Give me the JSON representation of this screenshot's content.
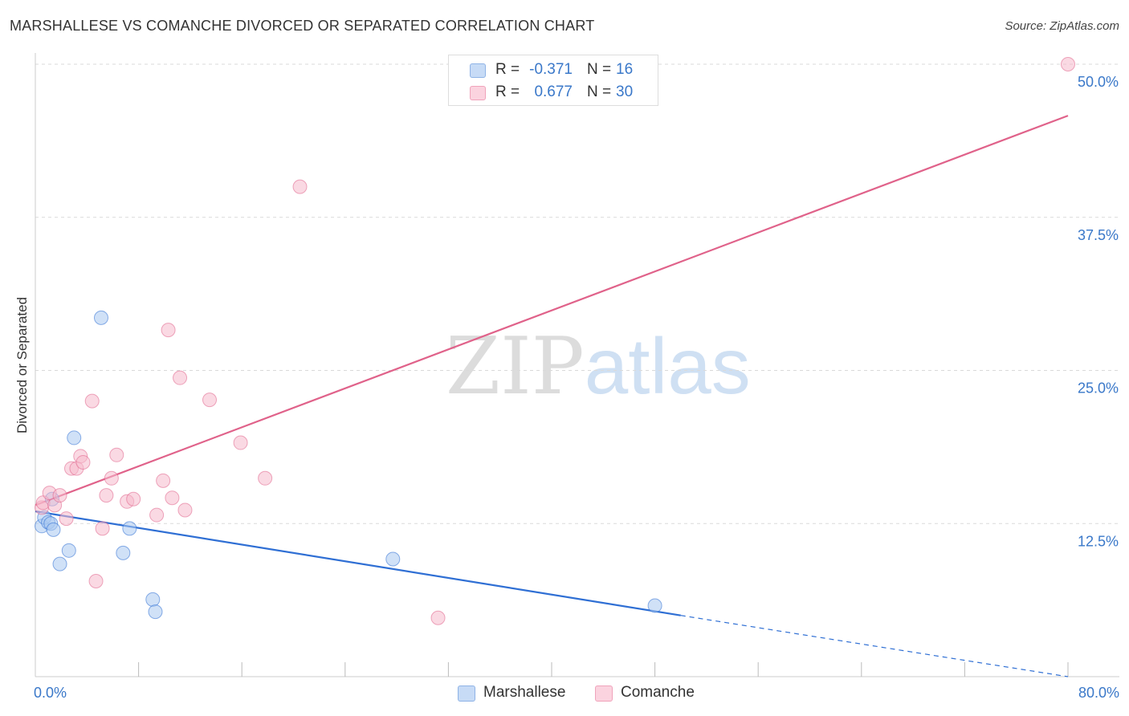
{
  "title": "MARSHALLESE VS COMANCHE DIVORCED OR SEPARATED CORRELATION CHART",
  "source": "Source: ZipAtlas.com",
  "watermark": {
    "part1": "ZIP",
    "part2": "atlas"
  },
  "legend_stats": [
    {
      "name": "Marshallese",
      "r_label": "R =",
      "r_value": "-0.371",
      "n_label": "N =",
      "n_value": "16",
      "color": "#a9c8f0"
    },
    {
      "name": "Comanche",
      "r_label": "R =",
      "r_value": "0.677",
      "n_label": "N =",
      "n_value": "30",
      "color": "#f6b9cc"
    }
  ],
  "chart_data": {
    "type": "scatter",
    "title": "MARSHALLESE VS COMANCHE DIVORCED OR SEPARATED CORRELATION CHART",
    "xlabel": "",
    "ylabel": "Divorced or Separated",
    "xlim": [
      0,
      80
    ],
    "ylim": [
      0,
      50
    ],
    "x_tick_labels": [
      "0.0%",
      "80.0%"
    ],
    "y_tick_labels": [
      "12.5%",
      "25.0%",
      "37.5%",
      "50.0%"
    ],
    "y_ticks": [
      12.5,
      25.0,
      37.5,
      50.0
    ],
    "x_minor_ticks": [
      8,
      16,
      24,
      32,
      40,
      48,
      56,
      64,
      72,
      80
    ],
    "grid": true,
    "legend": [
      "Marshallese",
      "Comanche"
    ],
    "series": [
      {
        "name": "Marshallese",
        "color": "#a9c8f0",
        "line_color": "#2f6fd4",
        "points": [
          [
            0.5,
            12.3
          ],
          [
            0.7,
            13.0
          ],
          [
            1.0,
            12.6
          ],
          [
            1.2,
            12.5
          ],
          [
            1.3,
            14.5
          ],
          [
            1.4,
            12.0
          ],
          [
            1.9,
            9.2
          ],
          [
            2.6,
            10.3
          ],
          [
            3.0,
            19.5
          ],
          [
            5.1,
            29.3
          ],
          [
            6.8,
            10.1
          ],
          [
            7.3,
            12.1
          ],
          [
            9.1,
            6.3
          ],
          [
            9.3,
            5.3
          ],
          [
            27.7,
            9.6
          ],
          [
            48.0,
            5.8
          ]
        ],
        "trend": {
          "x_start": 0,
          "y_start": 13.5,
          "x_solid_end": 50,
          "y_solid_end": 5.0,
          "x_dash_end": 80,
          "y_dash_end": 0.0
        }
      },
      {
        "name": "Comanche",
        "color": "#f6b9cc",
        "line_color": "#e0628a",
        "points": [
          [
            0.5,
            13.8
          ],
          [
            0.6,
            14.2
          ],
          [
            1.1,
            15.0
          ],
          [
            1.5,
            14.0
          ],
          [
            1.9,
            14.8
          ],
          [
            2.4,
            12.9
          ],
          [
            2.8,
            17.0
          ],
          [
            3.2,
            17.0
          ],
          [
            3.5,
            18.0
          ],
          [
            3.7,
            17.5
          ],
          [
            4.4,
            22.5
          ],
          [
            4.7,
            7.8
          ],
          [
            5.2,
            12.1
          ],
          [
            5.5,
            14.8
          ],
          [
            5.9,
            16.2
          ],
          [
            6.3,
            18.1
          ],
          [
            7.1,
            14.3
          ],
          [
            7.6,
            14.5
          ],
          [
            9.4,
            13.2
          ],
          [
            9.9,
            16.0
          ],
          [
            10.3,
            28.3
          ],
          [
            10.6,
            14.6
          ],
          [
            11.2,
            24.4
          ],
          [
            11.6,
            13.6
          ],
          [
            13.5,
            22.6
          ],
          [
            15.9,
            19.1
          ],
          [
            17.8,
            16.2
          ],
          [
            20.5,
            40.0
          ],
          [
            31.2,
            4.8
          ],
          [
            80.0,
            50.0
          ]
        ],
        "trend": {
          "x_start": 0,
          "y_start": 14.0,
          "x_solid_end": 80,
          "y_solid_end": 45.8
        }
      }
    ]
  }
}
